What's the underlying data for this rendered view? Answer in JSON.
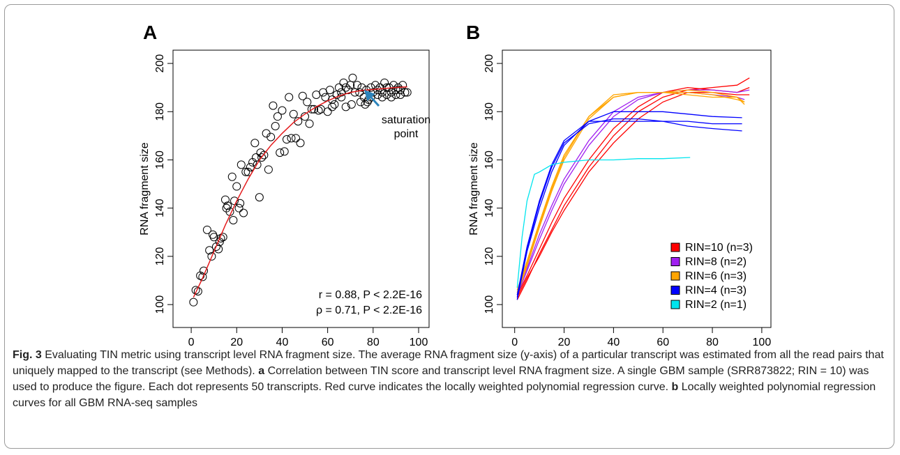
{
  "chart_data": [
    {
      "type": "scatter",
      "panel_label": "A",
      "xlabel": "TIN",
      "ylabel": "RNA fragment size",
      "xlim": [
        -8,
        104.6
      ],
      "ylim": [
        90.5,
        205.5
      ],
      "xticks": [
        0,
        20,
        40,
        60,
        80,
        100
      ],
      "yticks": [
        100,
        120,
        140,
        160,
        180,
        200
      ],
      "points": {
        "color": "#000000",
        "x": [
          1,
          2,
          3,
          4,
          5,
          5.5,
          7,
          8,
          9,
          9.5,
          10,
          11,
          12,
          12.5,
          13,
          14,
          15,
          15.5,
          16,
          17,
          18,
          18.5,
          19,
          20,
          21,
          21.5,
          22,
          23,
          24,
          25,
          26,
          27,
          28,
          28.5,
          29,
          30,
          30.5,
          31,
          32,
          33,
          34,
          35,
          36,
          37,
          38,
          39,
          40,
          41,
          42,
          43,
          44,
          45,
          46,
          47,
          48,
          49,
          50,
          51,
          52,
          53,
          54,
          55,
          56,
          57,
          58,
          59,
          60,
          61,
          62,
          63,
          64,
          65,
          66,
          67,
          68,
          69,
          70,
          70.5,
          71,
          72,
          73,
          74,
          75,
          76,
          77,
          78,
          79,
          80,
          81,
          82,
          83,
          84,
          85,
          86,
          87,
          88,
          89,
          90,
          91,
          92,
          93,
          94,
          95,
          74.5,
          76.5,
          77.5,
          79,
          82,
          84,
          86,
          88,
          90,
          92,
          66,
          68,
          62
        ],
        "y": [
          101,
          106,
          105.5,
          112,
          111.5,
          114,
          131,
          122.5,
          120,
          129,
          128,
          124,
          123,
          126,
          127.5,
          128,
          143.5,
          140,
          141,
          138.5,
          153,
          135,
          143,
          149,
          140,
          142,
          158,
          138,
          155,
          155,
          157,
          159,
          167,
          161,
          158,
          144.5,
          163,
          161,
          162,
          171,
          156,
          169.5,
          182.5,
          174,
          178,
          163,
          180.5,
          163.5,
          168.5,
          186,
          169,
          179,
          169,
          176,
          167,
          186.5,
          178,
          184,
          175,
          181,
          181,
          187,
          180.5,
          181,
          188,
          186,
          180,
          189,
          185,
          183,
          187,
          190,
          186,
          192,
          182,
          189,
          191,
          183,
          194,
          188,
          191,
          188,
          190,
          186,
          189,
          185,
          190,
          188,
          191,
          187,
          190,
          188,
          192,
          187,
          190,
          188,
          191,
          187,
          190,
          189,
          191,
          188,
          188,
          184,
          183,
          184,
          186,
          189,
          186,
          190,
          186,
          189,
          187,
          188,
          190,
          182
        ]
      },
      "fit": {
        "color": "#e41a1c",
        "x": [
          1,
          5,
          10,
          15,
          20,
          25,
          30,
          35,
          40,
          45,
          50,
          55,
          60,
          65,
          70,
          75,
          80,
          85,
          90,
          95
        ],
        "values": [
          103,
          111,
          122,
          133,
          143,
          152,
          160,
          166,
          171,
          175.5,
          179,
          182,
          184.5,
          186.5,
          188,
          188.8,
          189.2,
          189.6,
          190,
          190.3
        ]
      },
      "annotation": [
        "saturation",
        "point"
      ],
      "stats": [
        "r = 0.88,  P < 2.2E-16",
        "ρ = 0.71,  P < 2.2E-16"
      ]
    },
    {
      "type": "line",
      "panel_label": "B",
      "xlabel": "TIN",
      "ylabel": "RNA fragment size",
      "xlim": [
        -5,
        103.7
      ],
      "ylim": [
        90.5,
        205.5
      ],
      "xticks": [
        0,
        20,
        40,
        60,
        80,
        100
      ],
      "yticks": [
        100,
        120,
        140,
        160,
        180,
        200
      ],
      "legend": "bottomright",
      "series": [
        {
          "name": "RIN=10 (n=3)",
          "color": "#ff0000",
          "lines": [
            {
              "x": [
                1,
                5,
                10,
                15,
                20,
                30,
                40,
                50,
                60,
                70,
                80,
                90,
                95
              ],
              "values": [
                102,
                110,
                121,
                131,
                141,
                157,
                170,
                180,
                186,
                189,
                190,
                191,
                194
              ]
            },
            {
              "x": [
                1,
                5,
                10,
                15,
                20,
                30,
                40,
                50,
                60,
                70,
                80,
                90,
                95
              ],
              "values": [
                104,
                112,
                123,
                134,
                144,
                160,
                173,
                182,
                188,
                190,
                189,
                188,
                190
              ]
            },
            {
              "x": [
                1,
                5,
                10,
                15,
                20,
                30,
                40,
                50,
                60,
                70,
                80,
                90,
                95
              ],
              "values": [
                103,
                111,
                120,
                130,
                139,
                155,
                167,
                177,
                184,
                188,
                188,
                187,
                187
              ]
            }
          ]
        },
        {
          "name": "RIN=8 (n=2)",
          "color": "#a020f0",
          "lines": [
            {
              "x": [
                1,
                5,
                10,
                15,
                20,
                30,
                40,
                50,
                60,
                70,
                80,
                90,
                95
              ],
              "values": [
                104,
                114,
                127,
                139,
                150,
                166,
                178,
                185,
                188,
                189,
                189,
                188,
                189
              ]
            },
            {
              "x": [
                1,
                5,
                10,
                15,
                20,
                30,
                40,
                50,
                60,
                70,
                80,
                90,
                93
              ],
              "values": [
                105,
                115,
                129,
                141,
                152,
                168,
                180,
                186,
                188,
                188,
                187,
                186,
                185
              ]
            }
          ]
        },
        {
          "name": "RIN=6 (n=3)",
          "color": "#ffa500",
          "lines": [
            {
              "x": [
                1,
                5,
                10,
                15,
                20,
                30,
                40,
                50,
                60,
                70,
                80,
                90,
                93
              ],
              "values": [
                104,
                116,
                132,
                147,
                160,
                177,
                186,
                188,
                188,
                188,
                187,
                185,
                184
              ]
            },
            {
              "x": [
                1,
                5,
                10,
                15,
                20,
                30,
                40,
                50,
                60,
                70,
                80,
                90,
                93
              ],
              "values": [
                105,
                117,
                133,
                148,
                161,
                178,
                187,
                188,
                188,
                189,
                188,
                186,
                183
              ]
            },
            {
              "x": [
                1,
                5,
                10,
                15,
                20,
                30,
                40,
                50,
                60,
                70,
                80,
                90,
                93
              ],
              "values": [
                106,
                118,
                134,
                149,
                162,
                178,
                186,
                188,
                188,
                187,
                186,
                186,
                184
              ]
            }
          ]
        },
        {
          "name": "RIN=4 (n=3)",
          "color": "#0000ff",
          "lines": [
            {
              "x": [
                1,
                5,
                10,
                15,
                20,
                30,
                40,
                50,
                60,
                70,
                80,
                92
              ],
              "values": [
                102,
                122,
                140,
                155,
                166,
                176,
                180,
                180,
                180,
                179,
                178,
                177.5
              ]
            },
            {
              "x": [
                1,
                5,
                10,
                15,
                20,
                30,
                40,
                50,
                60,
                70,
                80,
                92
              ],
              "values": [
                103,
                123,
                142,
                157,
                167,
                175,
                177,
                177,
                176,
                176,
                175,
                175
              ]
            },
            {
              "x": [
                1,
                5,
                10,
                15,
                20,
                30,
                40,
                50,
                60,
                70,
                80,
                92
              ],
              "values": [
                104,
                124,
                143,
                158,
                168,
                176,
                176,
                176,
                176,
                174,
                173,
                172
              ]
            }
          ]
        },
        {
          "name": "RIN=2 (n=1)",
          "color": "#00e5ee",
          "lines": [
            {
              "x": [
                1,
                3,
                5,
                8,
                10,
                15,
                20,
                30,
                40,
                50,
                60,
                71
              ],
              "values": [
                107,
                128,
                143,
                154,
                155,
                158,
                159,
                160,
                160,
                160.5,
                160.5,
                161
              ]
            }
          ]
        }
      ]
    }
  ],
  "caption": {
    "label": "Fig. 3",
    "intro": "Evaluating TIN metric using transcript level RNA fragment size. The average RNA fragment size (y-axis) of a particular transcript was estimated from all the read pairs that uniquely mapped to the transcript (see Methods).",
    "a_label": "a",
    "a_text": "Correlation between TIN score and transcript level RNA fragment size. A single GBM sample (SRR873822; RIN = 10) was used to produce the figure. Each dot represents 50 transcripts. Red curve indicates the locally weighted polynomial regression curve.",
    "b_label": "b",
    "b_text": "Locally weighted polynomial regression curves for all GBM RNA-seq samples"
  }
}
